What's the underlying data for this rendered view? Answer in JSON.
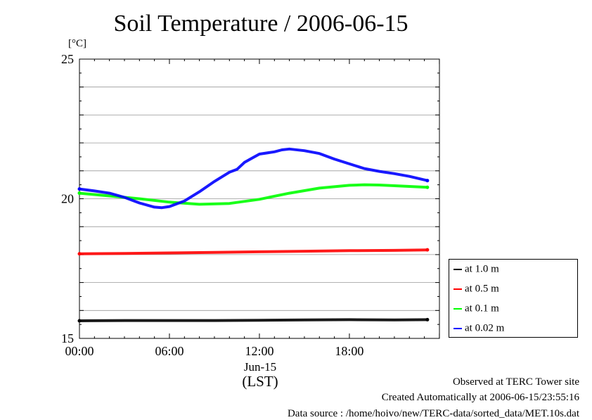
{
  "chart_data": {
    "type": "line",
    "title": "Soil Temperature / 2006-06-15",
    "ylabel": "[°C]",
    "ylim": [
      15,
      25
    ],
    "y_ticks": [
      15,
      20,
      25
    ],
    "y_tick_labels": [
      "15",
      "20",
      "25"
    ],
    "xlim": [
      0,
      24
    ],
    "x_ticks": [
      0,
      6,
      12,
      18
    ],
    "x_tick_labels": [
      "00:00",
      "06:00",
      "12:00",
      "18:00"
    ],
    "x_date_label": "Jun-15",
    "x_axis_label": "(LST)",
    "grid": true,
    "legend_position": "lower-right-outside",
    "series": [
      {
        "name": "at 1.0 m",
        "color": "#000000",
        "x": [
          0,
          3,
          6,
          9,
          12,
          15,
          18,
          21,
          23.2
        ],
        "y": [
          15.63,
          15.64,
          15.64,
          15.64,
          15.65,
          15.66,
          15.67,
          15.66,
          15.67
        ]
      },
      {
        "name": "at 0.5 m",
        "color": "#ff0000",
        "x": [
          0,
          3,
          6,
          9,
          12,
          15,
          18,
          21,
          23.2
        ],
        "y": [
          18.03,
          18.04,
          18.06,
          18.08,
          18.1,
          18.12,
          18.14,
          18.15,
          18.17
        ]
      },
      {
        "name": "at 0.1 m",
        "color": "#00ff00",
        "x": [
          0,
          2,
          4,
          6,
          8,
          10,
          12,
          14,
          16,
          18,
          19,
          20,
          22,
          23.2
        ],
        "y": [
          20.2,
          20.1,
          20.0,
          19.88,
          19.8,
          19.83,
          19.98,
          20.2,
          20.38,
          20.48,
          20.5,
          20.49,
          20.44,
          20.41
        ]
      },
      {
        "name": "at 0.02 m",
        "color": "#0000ff",
        "x": [
          0,
          1,
          2,
          3,
          4,
          5,
          5.5,
          6,
          7,
          8,
          9,
          10,
          10.5,
          11,
          11.5,
          12,
          13,
          13.5,
          14,
          15,
          16,
          17,
          18,
          19,
          20,
          21,
          22,
          23.2
        ],
        "y": [
          20.35,
          20.28,
          20.2,
          20.05,
          19.85,
          19.7,
          19.68,
          19.72,
          19.92,
          20.25,
          20.62,
          20.95,
          21.05,
          21.3,
          21.45,
          21.6,
          21.68,
          21.75,
          21.78,
          21.72,
          21.62,
          21.42,
          21.25,
          21.08,
          20.98,
          20.9,
          20.8,
          20.65
        ]
      }
    ]
  },
  "footer": {
    "line1": "Observed at TERC Tower site",
    "line2": "Created Automatically at 2006-06-15/23:55:16",
    "line3": "Data source : /home/hoivo/new/TERC-data/sorted_data/MET.10s.dat"
  }
}
